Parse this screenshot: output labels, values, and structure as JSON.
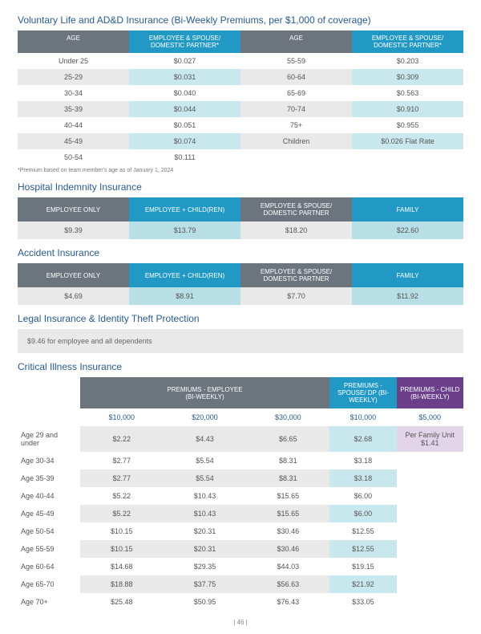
{
  "voluntary": {
    "title": "Voluntary Life and AD&D Insurance (Bi-Weekly Premiums, per $1,000 of coverage)",
    "headers": [
      "AGE",
      "EMPLOYEE & SPOUSE/ DOMESTIC PARTNER*",
      "AGE",
      "EMPLOYEE & SPOUSE/ DOMESTIC PARTNER*"
    ],
    "rows": [
      [
        "Under 25",
        "$0.027",
        "55-59",
        "$0.203"
      ],
      [
        "25-29",
        "$0.031",
        "60-64",
        "$0.309"
      ],
      [
        "30-34",
        "$0.040",
        "65-69",
        "$0.563"
      ],
      [
        "35-39",
        "$0.044",
        "70-74",
        "$0.910"
      ],
      [
        "40-44",
        "$0.051",
        "75+",
        "$0.955"
      ],
      [
        "45-49",
        "$0.074",
        "Children",
        "$0.026 Flat Rate"
      ],
      [
        "50-54",
        "$0.111",
        "",
        ""
      ]
    ],
    "footnote": "*Premium based on team member's age as of January 1, 2024"
  },
  "hospital": {
    "title": "Hospital Indemnity Insurance",
    "headers": [
      "EMPLOYEE ONLY",
      "EMPLOYEE + CHILD(REN)",
      "EMPLOYEE & SPOUSE/ DOMESTIC PARTNER",
      "FAMILY"
    ],
    "values": [
      "$9.39",
      "$13.79",
      "$18.20",
      "$22.60"
    ]
  },
  "accident": {
    "title": "Accident Insurance",
    "headers": [
      "EMPLOYEE ONLY",
      "EMPLOYEE + CHILD(REN)",
      "EMPLOYEE & SPOUSE/ DOMESTIC PARTNER",
      "FAMILY"
    ],
    "values": [
      "$4.69",
      "$8.91",
      "$7.70",
      "$11.92"
    ]
  },
  "legal": {
    "title": "Legal Insurance & Identity Theft Protection",
    "text": "$9.46 for employee and all dependents"
  },
  "critical": {
    "title": "Critical Illness Insurance",
    "group1": "PREMIUMS - EMPLOYEE\n(BI-WEEKLY)",
    "group2": "PREMIUMS - SPOUSE/ DP (BI-WEEKLY)",
    "group3": "PREMIUMS - CHILD (BI-WEEKLY)",
    "sub": [
      "$10,000",
      "$20,000",
      "$30,000",
      "$10,000",
      "$5,000"
    ],
    "child_label": "Per Family Unit $1.41",
    "rows": [
      [
        "Age 29 and under",
        "$2.22",
        "$4.43",
        "$6.65",
        "$2.68"
      ],
      [
        "Age 30-34",
        "$2.77",
        "$5.54",
        "$8.31",
        "$3.18"
      ],
      [
        "Age 35-39",
        "$2.77",
        "$5.54",
        "$8.31",
        "$3.18"
      ],
      [
        "Age 40-44",
        "$5.22",
        "$10.43",
        "$15.65",
        "$6.00"
      ],
      [
        "Age 45-49",
        "$5.22",
        "$10.43",
        "$15.65",
        "$6.00"
      ],
      [
        "Age 50-54",
        "$10.15",
        "$20.31",
        "$30.46",
        "$12.55"
      ],
      [
        "Age 55-59",
        "$10.15",
        "$20.31",
        "$30.46",
        "$12.55"
      ],
      [
        "Age 60-64",
        "$14.68",
        "$29.35",
        "$44.03",
        "$19.15"
      ],
      [
        "Age 65-70",
        "$18.88",
        "$37.75",
        "$56.63",
        "$21.92"
      ],
      [
        "Age 70+",
        "$25.48",
        "$50.95",
        "$76.43",
        "$33.05"
      ]
    ]
  },
  "page": "| 46 |",
  "colors": {
    "blue": "#2199c4",
    "gray": "#6c757d",
    "purple": "#6b3f8a",
    "lightblue": "#b8dfe6",
    "vlblue": "#c9e8ed",
    "rowgray": "#e9e9e9",
    "heading": "#2a5a8a"
  }
}
